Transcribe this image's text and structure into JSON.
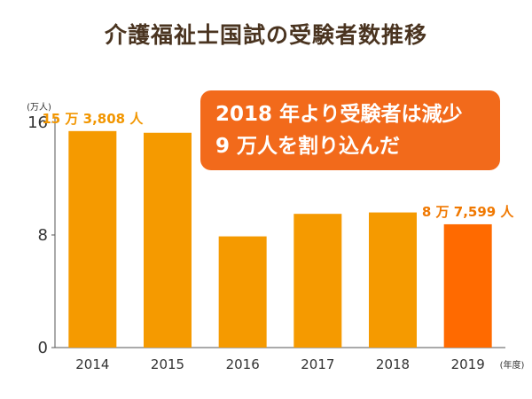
{
  "chart_data": {
    "type": "bar",
    "title": "介護福祉士国試の受験者数推移",
    "y_unit": "(万人)",
    "x_unit": "(年度)",
    "ylim": [
      0,
      16
    ],
    "y_ticks": [
      {
        "value": 0,
        "label": "0"
      },
      {
        "value": 8,
        "label": "8"
      },
      {
        "value": 16,
        "label": "16"
      }
    ],
    "categories": [
      "2014",
      "2015",
      "2016",
      "2017",
      "2018",
      "2019"
    ],
    "values": [
      15.3808,
      15.26,
      7.9,
      9.5,
      9.6,
      8.7599
    ],
    "data_labels": [
      {
        "index": 0,
        "text": "15 万 3,808 人"
      },
      {
        "index": 5,
        "text": "8 万 7,599 人"
      }
    ],
    "annotation": {
      "line1": "2018 年より受験者は減少",
      "line2": "9 万人を割り込んだ"
    },
    "grid": false,
    "colors": {
      "bar": "#f59a00",
      "bar_highlight": "#ff6a00",
      "annotation_bg": "#f26a1b",
      "title": "#4a3420"
    }
  }
}
